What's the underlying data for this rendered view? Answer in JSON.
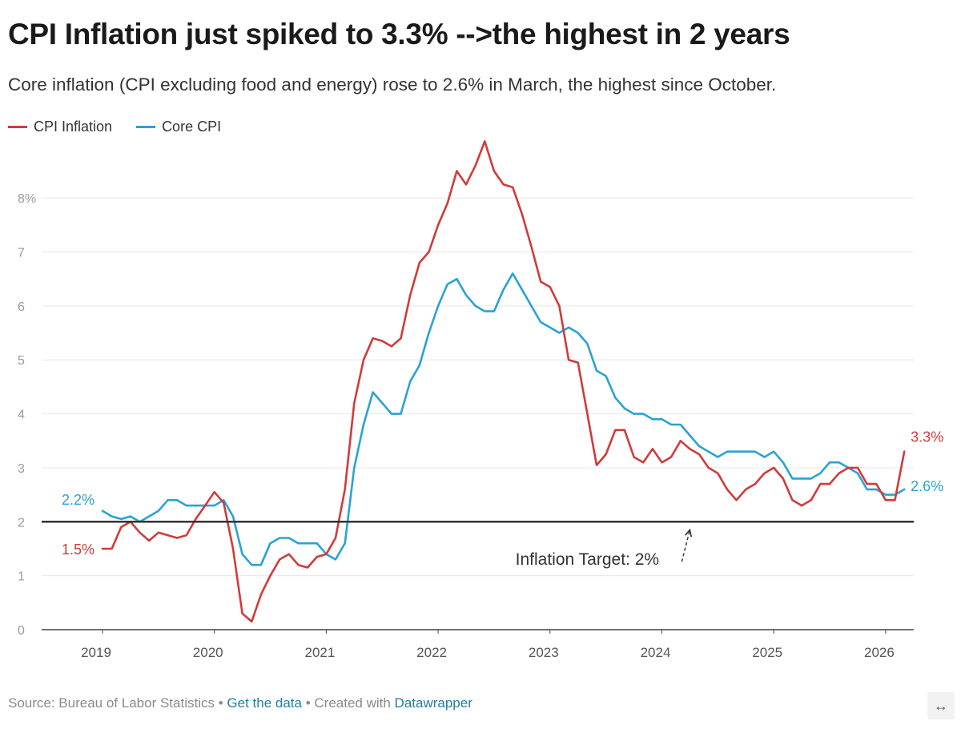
{
  "header": {
    "title": "CPI Inflation just spiked to 3.3% -->the highest in 2 years",
    "subtitle": "Core inflation (CPI excluding food and energy) rose to 2.6% in March, the highest since October."
  },
  "legend": [
    {
      "name": "CPI Inflation",
      "color": "#d03b3b"
    },
    {
      "name": "Core CPI",
      "color": "#2aa2d4"
    }
  ],
  "footer": {
    "source": "Source: Bureau of Labor Statistics",
    "sep": " • ",
    "get_data": "Get the data",
    "created": "Created with ",
    "datawrapper": "Datawrapper"
  },
  "expand_icon": "↔",
  "chart_data": {
    "type": "line",
    "title": "CPI Inflation just spiked to 3.3% -->the highest in 2 years",
    "subtitle": "Core inflation (CPI excluding food and energy) rose to 2.6% in March, the highest since October.",
    "xlabel": "",
    "ylabel": "",
    "xlim": [
      "2019-01",
      "2026-03"
    ],
    "ylim": [
      0,
      8.7
    ],
    "yticks": [
      {
        "value": 0,
        "label": "0"
      },
      {
        "value": 1,
        "label": "1"
      },
      {
        "value": 2,
        "label": "2"
      },
      {
        "value": 3,
        "label": "3"
      },
      {
        "value": 4,
        "label": "4"
      },
      {
        "value": 5,
        "label": "5"
      },
      {
        "value": 6,
        "label": "6"
      },
      {
        "value": 7,
        "label": "7"
      },
      {
        "value": 8,
        "label": "8%"
      }
    ],
    "xticks": [
      {
        "value": "2019-01",
        "label": "2019"
      },
      {
        "value": "2020-01",
        "label": "2020"
      },
      {
        "value": "2021-01",
        "label": "2021"
      },
      {
        "value": "2022-01",
        "label": "2022"
      },
      {
        "value": "2023-01",
        "label": "2023"
      },
      {
        "value": "2024-01",
        "label": "2024"
      },
      {
        "value": "2025-01",
        "label": "2025"
      },
      {
        "value": "2026-01",
        "label": "2026"
      }
    ],
    "grid": "horizontal",
    "legend_position": "top-left",
    "series": [
      {
        "name": "CPI Inflation",
        "color": "#d03b3b",
        "start_label": "1.5%",
        "end_label": "3.3%",
        "points": [
          [
            "2019-01",
            1.5
          ],
          [
            "2019-02",
            1.5
          ],
          [
            "2019-03",
            1.9
          ],
          [
            "2019-04",
            2.0
          ],
          [
            "2019-05",
            1.8
          ],
          [
            "2019-06",
            1.65
          ],
          [
            "2019-07",
            1.8
          ],
          [
            "2019-08",
            1.75
          ],
          [
            "2019-09",
            1.7
          ],
          [
            "2019-10",
            1.75
          ],
          [
            "2019-11",
            2.05
          ],
          [
            "2019-12",
            2.3
          ],
          [
            "2020-01",
            2.55
          ],
          [
            "2020-02",
            2.35
          ],
          [
            "2020-03",
            1.5
          ],
          [
            "2020-04",
            0.3
          ],
          [
            "2020-05",
            0.15
          ],
          [
            "2020-06",
            0.65
          ],
          [
            "2020-07",
            1.0
          ],
          [
            "2020-08",
            1.3
          ],
          [
            "2020-09",
            1.4
          ],
          [
            "2020-10",
            1.2
          ],
          [
            "2020-11",
            1.15
          ],
          [
            "2020-12",
            1.35
          ],
          [
            "2021-01",
            1.4
          ],
          [
            "2021-02",
            1.7
          ],
          [
            "2021-03",
            2.6
          ],
          [
            "2021-04",
            4.2
          ],
          [
            "2021-05",
            5.0
          ],
          [
            "2021-06",
            5.4
          ],
          [
            "2021-07",
            5.35
          ],
          [
            "2021-08",
            5.25
          ],
          [
            "2021-09",
            5.4
          ],
          [
            "2021-10",
            6.2
          ],
          [
            "2021-11",
            6.8
          ],
          [
            "2021-12",
            7.0
          ],
          [
            "2022-01",
            7.5
          ],
          [
            "2022-02",
            7.9
          ],
          [
            "2022-03",
            8.5
          ],
          [
            "2022-04",
            8.25
          ],
          [
            "2022-05",
            8.6
          ],
          [
            "2022-06",
            9.05
          ],
          [
            "2022-07",
            8.5
          ],
          [
            "2022-08",
            8.25
          ],
          [
            "2022-09",
            8.2
          ],
          [
            "2022-10",
            7.7
          ],
          [
            "2022-11",
            7.1
          ],
          [
            "2022-12",
            6.45
          ],
          [
            "2023-01",
            6.35
          ],
          [
            "2023-02",
            6.0
          ],
          [
            "2023-03",
            5.0
          ],
          [
            "2023-04",
            4.95
          ],
          [
            "2023-05",
            4.0
          ],
          [
            "2023-06",
            3.05
          ],
          [
            "2023-07",
            3.25
          ],
          [
            "2023-08",
            3.7
          ],
          [
            "2023-09",
            3.7
          ],
          [
            "2023-10",
            3.2
          ],
          [
            "2023-11",
            3.1
          ],
          [
            "2023-12",
            3.35
          ],
          [
            "2024-01",
            3.1
          ],
          [
            "2024-02",
            3.2
          ],
          [
            "2024-03",
            3.5
          ],
          [
            "2024-04",
            3.35
          ],
          [
            "2024-05",
            3.25
          ],
          [
            "2024-06",
            3.0
          ],
          [
            "2024-07",
            2.9
          ],
          [
            "2024-08",
            2.6
          ],
          [
            "2024-09",
            2.4
          ],
          [
            "2024-10",
            2.6
          ],
          [
            "2024-11",
            2.7
          ],
          [
            "2024-12",
            2.9
          ],
          [
            "2025-01",
            3.0
          ],
          [
            "2025-02",
            2.8
          ],
          [
            "2025-03",
            2.4
          ],
          [
            "2025-04",
            2.3
          ],
          [
            "2025-05",
            2.4
          ],
          [
            "2025-06",
            2.7
          ],
          [
            "2025-07",
            2.7
          ],
          [
            "2025-08",
            2.9
          ],
          [
            "2025-09",
            3.0
          ],
          [
            "2025-10",
            3.0
          ],
          [
            "2025-11",
            2.7
          ],
          [
            "2025-12",
            2.7
          ],
          [
            "2026-01",
            2.4
          ],
          [
            "2026-02",
            2.4
          ],
          [
            "2026-03",
            3.3
          ]
        ]
      },
      {
        "name": "Core CPI",
        "color": "#2aa2d4",
        "start_label": "2.2%",
        "end_label": "2.6%",
        "points": [
          [
            "2019-01",
            2.2
          ],
          [
            "2019-02",
            2.1
          ],
          [
            "2019-03",
            2.05
          ],
          [
            "2019-04",
            2.1
          ],
          [
            "2019-05",
            2.0
          ],
          [
            "2019-06",
            2.1
          ],
          [
            "2019-07",
            2.2
          ],
          [
            "2019-08",
            2.4
          ],
          [
            "2019-09",
            2.4
          ],
          [
            "2019-10",
            2.3
          ],
          [
            "2019-11",
            2.3
          ],
          [
            "2019-12",
            2.3
          ],
          [
            "2020-01",
            2.3
          ],
          [
            "2020-02",
            2.4
          ],
          [
            "2020-03",
            2.1
          ],
          [
            "2020-04",
            1.4
          ],
          [
            "2020-05",
            1.2
          ],
          [
            "2020-06",
            1.2
          ],
          [
            "2020-07",
            1.6
          ],
          [
            "2020-08",
            1.7
          ],
          [
            "2020-09",
            1.7
          ],
          [
            "2020-10",
            1.6
          ],
          [
            "2020-11",
            1.6
          ],
          [
            "2020-12",
            1.6
          ],
          [
            "2021-01",
            1.4
          ],
          [
            "2021-02",
            1.3
          ],
          [
            "2021-03",
            1.6
          ],
          [
            "2021-04",
            3.0
          ],
          [
            "2021-05",
            3.8
          ],
          [
            "2021-06",
            4.4
          ],
          [
            "2021-07",
            4.2
          ],
          [
            "2021-08",
            4.0
          ],
          [
            "2021-09",
            4.0
          ],
          [
            "2021-10",
            4.6
          ],
          [
            "2021-11",
            4.9
          ],
          [
            "2021-12",
            5.5
          ],
          [
            "2022-01",
            6.0
          ],
          [
            "2022-02",
            6.4
          ],
          [
            "2022-03",
            6.5
          ],
          [
            "2022-04",
            6.2
          ],
          [
            "2022-05",
            6.0
          ],
          [
            "2022-06",
            5.9
          ],
          [
            "2022-07",
            5.9
          ],
          [
            "2022-08",
            6.3
          ],
          [
            "2022-09",
            6.6
          ],
          [
            "2022-10",
            6.3
          ],
          [
            "2022-11",
            6.0
          ],
          [
            "2022-12",
            5.7
          ],
          [
            "2023-01",
            5.6
          ],
          [
            "2023-02",
            5.5
          ],
          [
            "2023-03",
            5.6
          ],
          [
            "2023-04",
            5.5
          ],
          [
            "2023-05",
            5.3
          ],
          [
            "2023-06",
            4.8
          ],
          [
            "2023-07",
            4.7
          ],
          [
            "2023-08",
            4.3
          ],
          [
            "2023-09",
            4.1
          ],
          [
            "2023-10",
            4.0
          ],
          [
            "2023-11",
            4.0
          ],
          [
            "2023-12",
            3.9
          ],
          [
            "2024-01",
            3.9
          ],
          [
            "2024-02",
            3.8
          ],
          [
            "2024-03",
            3.8
          ],
          [
            "2024-04",
            3.6
          ],
          [
            "2024-05",
            3.4
          ],
          [
            "2024-06",
            3.3
          ],
          [
            "2024-07",
            3.2
          ],
          [
            "2024-08",
            3.3
          ],
          [
            "2024-09",
            3.3
          ],
          [
            "2024-10",
            3.3
          ],
          [
            "2024-11",
            3.3
          ],
          [
            "2024-12",
            3.2
          ],
          [
            "2025-01",
            3.3
          ],
          [
            "2025-02",
            3.1
          ],
          [
            "2025-03",
            2.8
          ],
          [
            "2025-04",
            2.8
          ],
          [
            "2025-05",
            2.8
          ],
          [
            "2025-06",
            2.9
          ],
          [
            "2025-07",
            3.1
          ],
          [
            "2025-08",
            3.1
          ],
          [
            "2025-09",
            3.0
          ],
          [
            "2025-10",
            2.9
          ],
          [
            "2025-11",
            2.6
          ],
          [
            "2025-12",
            2.6
          ],
          [
            "2026-01",
            2.5
          ],
          [
            "2026-02",
            2.5
          ],
          [
            "2026-03",
            2.6
          ]
        ]
      }
    ],
    "reference_line": {
      "value": 2,
      "color": "#333333"
    },
    "annotations": [
      {
        "text": "Inflation Target: 2%",
        "x": "2023-05",
        "y": 1.2,
        "arrow_to": {
          "x": "2024-04",
          "y": 1.85
        }
      }
    ]
  }
}
